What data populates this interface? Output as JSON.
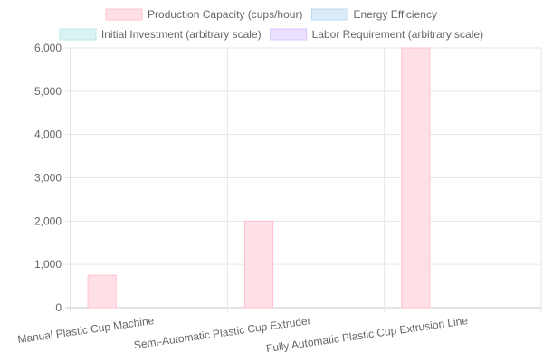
{
  "chart_data": {
    "type": "bar",
    "categories": [
      "Manual Plastic Cup Machine",
      "Semi-Automatic Plastic Cup Extruder",
      "Fully Automatic Plastic Cup Extrusion Line"
    ],
    "series": [
      {
        "name": "Production Capacity (cups/hour)",
        "values": [
          750,
          2000,
          6000
        ],
        "color": "#ffe0e6",
        "border": "#ffc2cf"
      },
      {
        "name": "Energy Efficiency",
        "values": [
          0,
          0,
          0
        ],
        "color": "#dbecf8",
        "border": "#b7dcf5"
      },
      {
        "name": "Initial Investment (arbitrary scale)",
        "values": [
          0,
          0,
          0
        ],
        "color": "#dbf2f2",
        "border": "#b9e8e8"
      },
      {
        "name": "Labor Requirement (arbitrary scale)",
        "values": [
          0,
          0,
          0
        ],
        "color": "#ebe0ff",
        "border": "#d6c5ff"
      }
    ],
    "ylim": [
      0,
      6000
    ],
    "yticks": [
      "0",
      "1,000",
      "2,000",
      "3,000",
      "4,000",
      "5,000",
      "6,000"
    ],
    "legend_position": "top",
    "grid": true
  }
}
